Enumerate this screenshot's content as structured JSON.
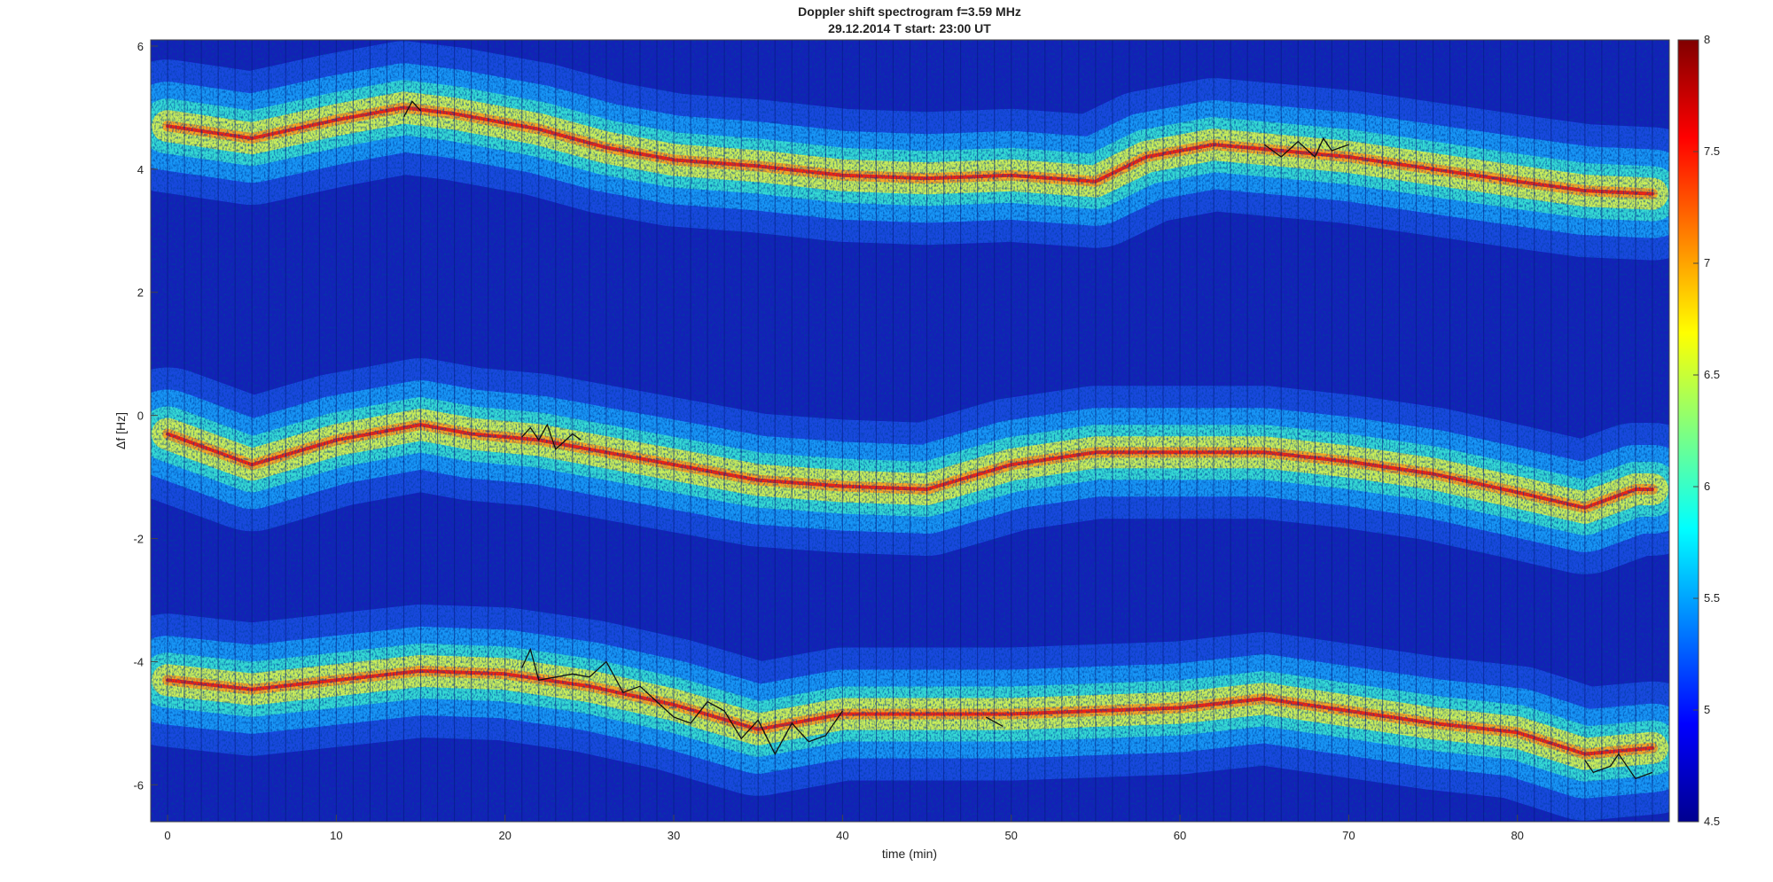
{
  "chart_data": {
    "type": "heatmap",
    "title": [
      "Doppler shift spectrogram f=3.59 MHz",
      "29.12.2014    T start: 23:00 UT"
    ],
    "xlabel": "time (min)",
    "ylabel": "Δf [Hz]",
    "xlim": [
      -1,
      89
    ],
    "ylim": [
      -6.6,
      6.1
    ],
    "xticks": [
      0,
      10,
      20,
      30,
      40,
      50,
      60,
      70,
      80
    ],
    "xtick_labels": [
      "0",
      "10",
      "20",
      "30",
      "40",
      "50",
      "60",
      "70",
      "80"
    ],
    "yticks": [
      6,
      4,
      2,
      0,
      -2,
      -4,
      -6
    ],
    "ytick_labels": [
      "6",
      "4",
      "2",
      "0",
      "-2",
      "-4",
      "-6"
    ],
    "colorbar": {
      "colormap": "jet",
      "range": [
        4.5,
        8
      ],
      "ticks": [
        8,
        7.5,
        7,
        6.5,
        6,
        5.5,
        5,
        4.5
      ],
      "tick_labels": [
        "8",
        "7.5",
        "7",
        "6.5",
        "6",
        "5.5",
        "5",
        "4.5"
      ]
    },
    "grid": false,
    "traces": [
      {
        "x": [
          0,
          5,
          10,
          14,
          17,
          22,
          26,
          30,
          35,
          40,
          45,
          50,
          55,
          58,
          62,
          66,
          70,
          75,
          80,
          84,
          88
        ],
        "y": [
          4.7,
          4.5,
          4.8,
          5.0,
          4.9,
          4.65,
          4.35,
          4.15,
          4.05,
          3.9,
          3.85,
          3.9,
          3.8,
          4.2,
          4.4,
          4.3,
          4.2,
          4.0,
          3.8,
          3.65,
          3.6
        ]
      },
      {
        "x": [
          0,
          5,
          10,
          15,
          18,
          22,
          26,
          30,
          35,
          40,
          45,
          50,
          55,
          60,
          65,
          70,
          75,
          80,
          84,
          87,
          88
        ],
        "y": [
          -0.3,
          -0.8,
          -0.4,
          -0.15,
          -0.3,
          -0.4,
          -0.6,
          -0.8,
          -1.05,
          -1.15,
          -1.2,
          -0.8,
          -0.6,
          -0.6,
          -0.6,
          -0.75,
          -0.95,
          -1.25,
          -1.5,
          -1.2,
          -1.2
        ]
      },
      {
        "x": [
          0,
          5,
          10,
          15,
          20,
          25,
          30,
          35,
          40,
          45,
          50,
          55,
          60,
          65,
          70,
          75,
          80,
          84,
          88
        ],
        "y": [
          -4.3,
          -4.45,
          -4.3,
          -4.15,
          -4.2,
          -4.4,
          -4.7,
          -5.1,
          -4.85,
          -4.85,
          -4.85,
          -4.8,
          -4.75,
          -4.6,
          -4.8,
          -5.0,
          -5.15,
          -5.5,
          -5.4
        ]
      }
    ],
    "measured_points": [
      {
        "x": [
          14,
          14.5,
          15
        ],
        "y": [
          4.85,
          5.1,
          4.95
        ]
      },
      {
        "x": [
          21,
          21.5,
          22,
          22.5,
          23,
          24,
          24.5
        ],
        "y": [
          -0.35,
          -0.2,
          -0.4,
          -0.15,
          -0.55,
          -0.3,
          -0.4
        ]
      },
      {
        "x": [
          65,
          66,
          67,
          68,
          68.5,
          69,
          70
        ],
        "y": [
          4.4,
          4.2,
          4.45,
          4.2,
          4.5,
          4.3,
          4.4
        ]
      },
      {
        "x": [
          21,
          21.5,
          22,
          23,
          24,
          25,
          26,
          27,
          28,
          29,
          30,
          31,
          32,
          33,
          34,
          35,
          36,
          37,
          38,
          39,
          40
        ],
        "y": [
          -4.1,
          -3.8,
          -4.3,
          -4.25,
          -4.2,
          -4.25,
          -4.0,
          -4.5,
          -4.4,
          -4.65,
          -4.9,
          -5.0,
          -4.65,
          -4.8,
          -5.25,
          -4.95,
          -5.5,
          -5.0,
          -5.3,
          -5.2,
          -4.8
        ]
      },
      {
        "x": [
          48.5,
          49.5
        ],
        "y": [
          -4.9,
          -5.05
        ]
      },
      {
        "x": [
          84,
          84.5,
          85.5,
          86,
          87,
          88
        ],
        "y": [
          -5.6,
          -5.8,
          -5.7,
          -5.5,
          -5.9,
          -5.8
        ]
      }
    ]
  }
}
